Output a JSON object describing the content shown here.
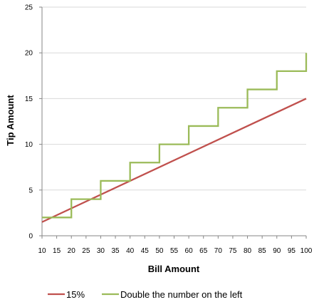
{
  "chart_data": {
    "type": "line",
    "title": "",
    "xlabel": "Bill Amount",
    "ylabel": "Tip Amount",
    "xlim": [
      10,
      100
    ],
    "ylim": [
      0,
      25
    ],
    "x_ticks": [
      10,
      15,
      20,
      25,
      30,
      35,
      40,
      45,
      50,
      55,
      60,
      65,
      70,
      75,
      80,
      85,
      90,
      95,
      100
    ],
    "y_ticks": [
      0,
      5,
      10,
      15,
      20,
      25
    ],
    "grid": "horizontal",
    "legend_position": "bottom",
    "series": [
      {
        "name": "15%",
        "color": "#c0504d",
        "x": [
          10,
          100
        ],
        "y": [
          1.5,
          15
        ]
      },
      {
        "name": "Double the number on the left",
        "color": "#9bbb59",
        "step": "after",
        "x": [
          10,
          20,
          30,
          40,
          50,
          60,
          70,
          80,
          90,
          100
        ],
        "y": [
          2,
          4,
          6,
          8,
          10,
          12,
          14,
          16,
          18,
          20
        ]
      }
    ]
  }
}
